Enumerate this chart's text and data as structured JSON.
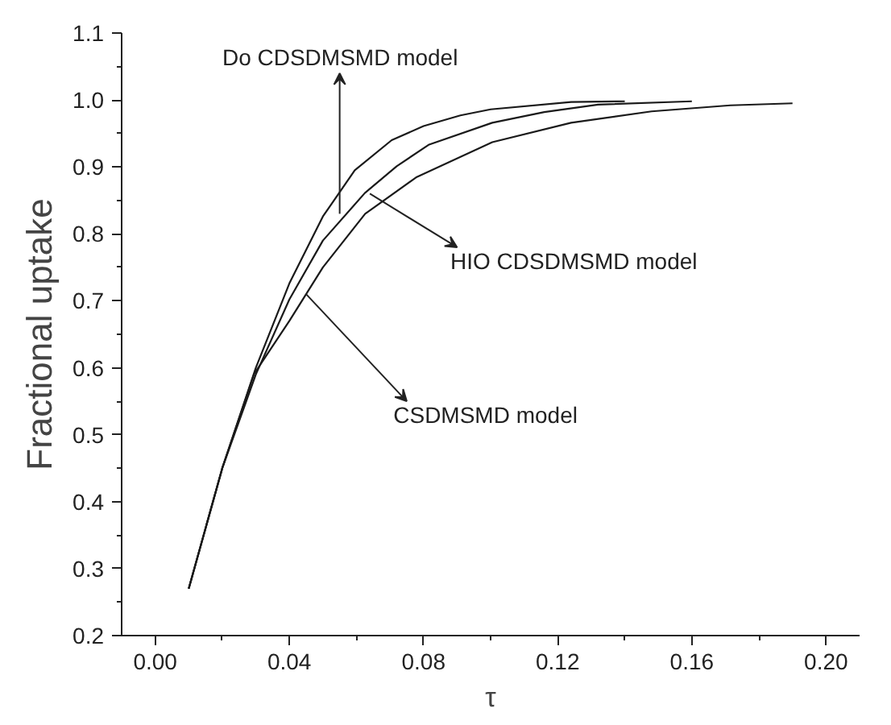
{
  "chart_data": {
    "type": "line",
    "xlabel": "τ",
    "ylabel": "Fractional uptake",
    "xlim": [
      -0.01,
      0.21
    ],
    "ylim": [
      0.2,
      1.1
    ],
    "xticks": [
      {
        "value": 0,
        "label": "0.00"
      },
      {
        "value": 0.04,
        "label": "0.04"
      },
      {
        "value": 0.08,
        "label": "0.08"
      },
      {
        "value": 0.12,
        "label": "0.12"
      },
      {
        "value": 0.16,
        "label": "0.16"
      },
      {
        "value": 0.2,
        "label": "0.20"
      }
    ],
    "yticks": [
      {
        "value": 0.2,
        "label": "0.2"
      },
      {
        "value": 0.3,
        "label": "0.3"
      },
      {
        "value": 0.4,
        "label": "0.4"
      },
      {
        "value": 0.5,
        "label": "0.5"
      },
      {
        "value": 0.6,
        "label": "0.6"
      },
      {
        "value": 0.7,
        "label": "0.7"
      },
      {
        "value": 0.8,
        "label": "0.8"
      },
      {
        "value": 0.9,
        "label": "0.9"
      },
      {
        "value": 1.0,
        "label": "1.0"
      },
      {
        "value": 1.1,
        "label": "1.1"
      }
    ],
    "grid": false,
    "marker": "none",
    "line_style": "solid",
    "series": [
      {
        "color": "#1a1a1a",
        "x": [
          0.01,
          0.02,
          0.03,
          0.04,
          0.05,
          0.0595,
          0.0705,
          0.08,
          0.091,
          0.1,
          0.124,
          0.14
        ],
        "values": [
          0.27,
          0.45,
          0.6,
          0.726,
          0.826,
          0.895,
          0.94,
          0.961,
          0.977,
          0.986,
          0.997,
          0.998
        ]
      },
      {
        "color": "#1a1a1a",
        "x": [
          0.01,
          0.02,
          0.03,
          0.04,
          0.05,
          0.0625,
          0.072,
          0.0815,
          0.1005,
          0.116,
          0.132,
          0.16
        ],
        "values": [
          0.27,
          0.45,
          0.59,
          0.702,
          0.79,
          0.861,
          0.901,
          0.933,
          0.966,
          0.982,
          0.993,
          0.998
        ]
      },
      {
        "color": "#1a1a1a",
        "x": [
          0.01,
          0.02,
          0.0295,
          0.04,
          0.05,
          0.0626,
          0.078,
          0.1005,
          0.124,
          0.148,
          0.1715,
          0.19
        ],
        "values": [
          0.27,
          0.45,
          0.591,
          0.67,
          0.75,
          0.83,
          0.885,
          0.937,
          0.966,
          0.983,
          0.992,
          0.995
        ]
      }
    ],
    "annotations": [
      {
        "text": "Do CDSDMSMD model",
        "x": 0.055,
        "y": 0.83
      },
      {
        "text": "HIO CDSDMSMD model",
        "x": 0.064,
        "y": 0.86
      },
      {
        "text": "CSDMSMD model",
        "x": 0.045,
        "y": 0.71
      }
    ]
  }
}
